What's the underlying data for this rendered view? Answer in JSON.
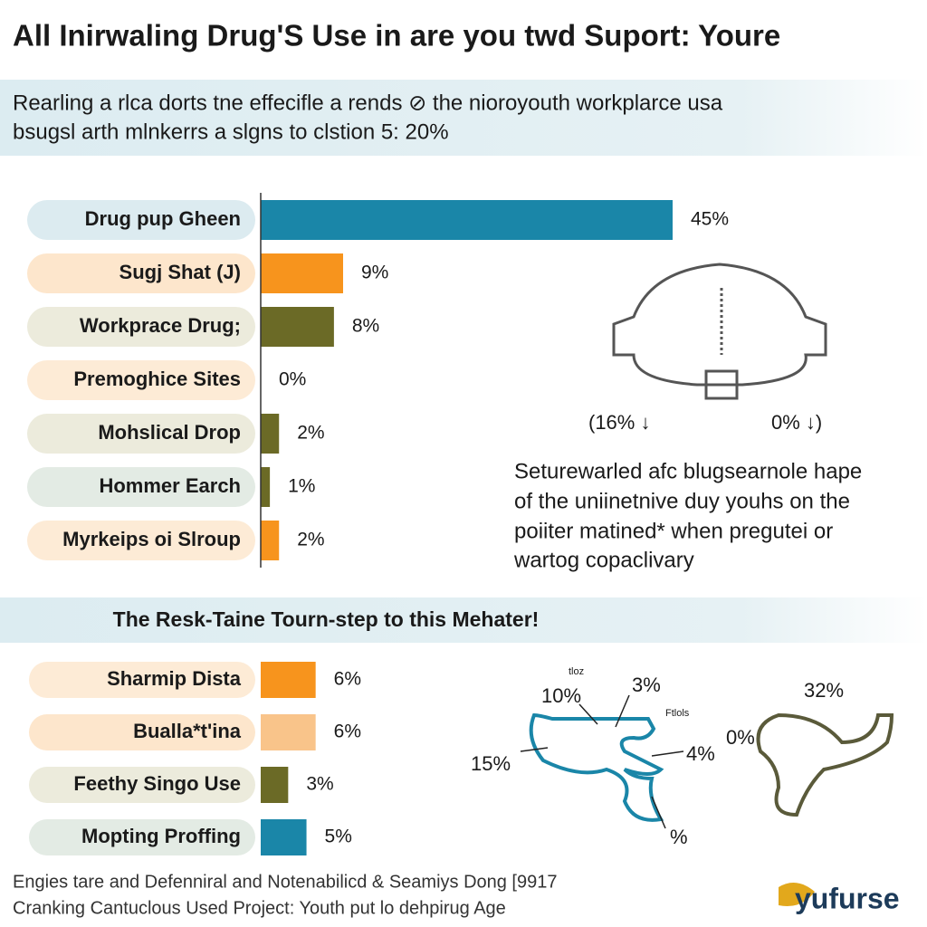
{
  "header": {
    "title": "All Inirwaling Drug'S Use in are you twd Suport: Youre",
    "subtitle": [
      "Rearling a rlca dorts tne effecifle a rends ⊘ the nioroyouth workplarce usa",
      "bsugsl arth mlnkerrs a slgns to clstion 5: 20%"
    ]
  },
  "chart_data": [
    {
      "type": "bar",
      "categories": [
        "Drug pup Gheen",
        "Sugj Shat (J)",
        "Workprace Drug;",
        "Premoghice Sites",
        "Mohslical Drop",
        "Hommer Earch",
        "Myrkeips oi Slroup"
      ],
      "values": [
        45,
        9,
        8,
        0,
        2,
        1,
        2
      ],
      "value_labels": [
        "45%",
        "9%",
        "8%",
        "0%",
        "2%",
        "1%",
        "2%"
      ],
      "colors": [
        "#1a86a8",
        "#f7941d",
        "#6b6a26",
        "#6b6a26",
        "#6b6a26",
        "#6b6a26",
        "#f7941d"
      ]
    },
    {
      "type": "bar",
      "title": "The Resk-Taine Tourn-step to this Mehater!",
      "categories": [
        "Sharmip Dista",
        "Bualla*t'ina",
        "Feethy Singo Use",
        "Mopting Proffing"
      ],
      "values": [
        6,
        6,
        3,
        5
      ],
      "value_labels": [
        "6%",
        "6%",
        "3%",
        "5%"
      ],
      "colors": [
        "#f7941d",
        "#f9c48a",
        "#6b6a26",
        "#1a86a8"
      ]
    }
  ],
  "gauge": {
    "left_label": "(16% ↓",
    "right_label": "0% ↓)"
  },
  "side_note": [
    "Seturewarled afc blugsearnole hape",
    "of the uniinetnive duy youhs on the",
    "poiiter matined* when pregutei or",
    "wartog copaclivary"
  ],
  "figure_labels": [
    "tloz",
    "10%",
    "3%",
    "Ftlols",
    "15%",
    "4%",
    "%",
    "0%",
    "32%"
  ],
  "footer": [
    "Engies tare and Defenniral and Notenabilicd & Seamiys Dong [9917",
    "Cranking Cantuclous Used Project: Youth put lo dehpirug Age"
  ],
  "logo": "yufurse"
}
